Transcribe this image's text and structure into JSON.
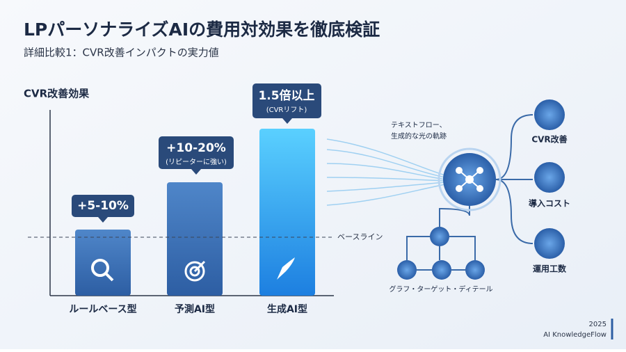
{
  "header": {
    "title": "LPパーソナライズAIの費用対効果を徹底検証",
    "subtitle": "詳細比較1：CVR改善インパクトの実力値"
  },
  "comparison": {
    "axis_label": "CVR改善効果",
    "baseline_label": "ベースライン",
    "items": [
      {
        "name": "ルールベース型",
        "callout": "+5-10%"
      },
      {
        "name": "予測AI型",
        "callout": "+10-20%",
        "note": "(リピーターに強い)"
      },
      {
        "name": "生成AI型",
        "callout": "1.5倍以上",
        "note": "(CVRリフト)"
      }
    ]
  },
  "flow": {
    "caption": [
      "テキストフロー、",
      "生成的な光の軌跡"
    ],
    "outputs": [
      "CVR改善",
      "導入コスト",
      "運用工数"
    ],
    "sub_caption": "グラフ・ターゲット・ディテール"
  },
  "footer": {
    "year": "2025",
    "brand": "AI KnowledgeFlow"
  }
}
